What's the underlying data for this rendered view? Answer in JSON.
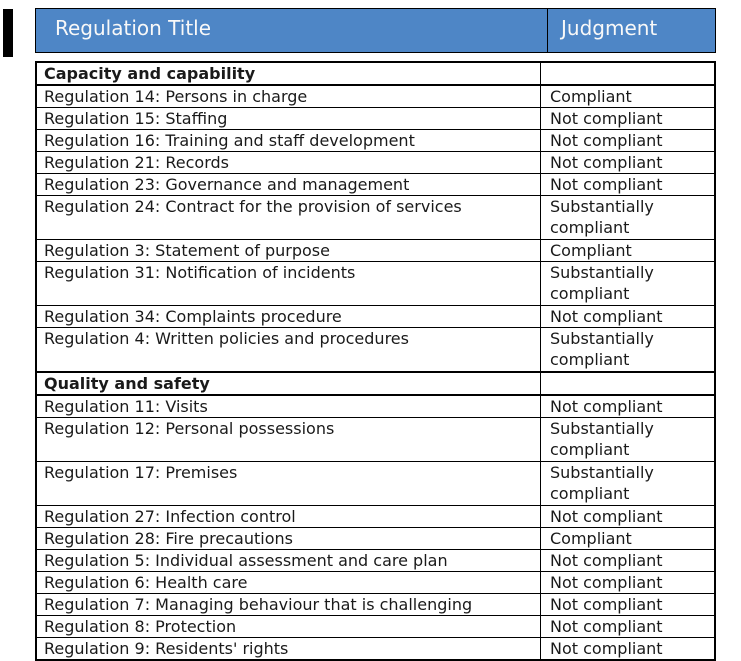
{
  "colors": {
    "header_bg": "#4e86c6",
    "header_text": "#f8f8f8",
    "grid_border": "#000000",
    "body_text": "#1a1a1a",
    "page_bg": "#ffffff",
    "margin_marker": "#000000"
  },
  "header": {
    "title_col": "Regulation Title",
    "judgment_col": "Judgment"
  },
  "table": {
    "rows": [
      {
        "type": "section",
        "tall": false,
        "title": "Capacity and capability",
        "judgment": ""
      },
      {
        "type": "regulation",
        "tall": false,
        "title": "Regulation 14: Persons in charge",
        "judgment": "Compliant"
      },
      {
        "type": "regulation",
        "tall": false,
        "title": "Regulation 15: Staffing",
        "judgment": "Not compliant"
      },
      {
        "type": "regulation",
        "tall": false,
        "title": "Regulation 16: Training and staff development",
        "judgment": "Not compliant"
      },
      {
        "type": "regulation",
        "tall": false,
        "title": "Regulation 21: Records",
        "judgment": "Not compliant"
      },
      {
        "type": "regulation",
        "tall": false,
        "title": "Regulation 23: Governance and management",
        "judgment": "Not compliant"
      },
      {
        "type": "regulation",
        "tall": true,
        "title": "Regulation 24: Contract for the provision of services",
        "judgment": "Substantially compliant"
      },
      {
        "type": "regulation",
        "tall": false,
        "title": "Regulation 3: Statement of purpose",
        "judgment": "Compliant"
      },
      {
        "type": "regulation",
        "tall": true,
        "title": "Regulation 31: Notification of incidents",
        "judgment": "Substantially compliant"
      },
      {
        "type": "regulation",
        "tall": false,
        "title": "Regulation 34: Complaints procedure",
        "judgment": "Not compliant"
      },
      {
        "type": "regulation",
        "tall": true,
        "title": "Regulation 4: Written policies and procedures",
        "judgment": "Substantially compliant"
      },
      {
        "type": "section",
        "tall": false,
        "title": "Quality and safety",
        "judgment": ""
      },
      {
        "type": "regulation",
        "tall": false,
        "title": "Regulation 11: Visits",
        "judgment": "Not compliant"
      },
      {
        "type": "regulation",
        "tall": true,
        "title": "Regulation 12: Personal possessions",
        "judgment": "Substantially compliant"
      },
      {
        "type": "regulation",
        "tall": true,
        "title": "Regulation 17: Premises",
        "judgment": "Substantially compliant"
      },
      {
        "type": "regulation",
        "tall": false,
        "title": "Regulation 27: Infection control",
        "judgment": "Not compliant"
      },
      {
        "type": "regulation",
        "tall": false,
        "title": "Regulation 28: Fire precautions",
        "judgment": "Compliant"
      },
      {
        "type": "regulation",
        "tall": false,
        "title": "Regulation 5: Individual assessment and care plan",
        "judgment": "Not compliant"
      },
      {
        "type": "regulation",
        "tall": false,
        "title": "Regulation 6: Health care",
        "judgment": "Not compliant"
      },
      {
        "type": "regulation",
        "tall": false,
        "title": "Regulation 7: Managing behaviour that is challenging",
        "judgment": "Not compliant"
      },
      {
        "type": "regulation",
        "tall": false,
        "title": "Regulation 8: Protection",
        "judgment": "Not compliant"
      },
      {
        "type": "regulation",
        "tall": false,
        "title": "Regulation 9: Residents' rights",
        "judgment": "Not compliant"
      }
    ]
  }
}
